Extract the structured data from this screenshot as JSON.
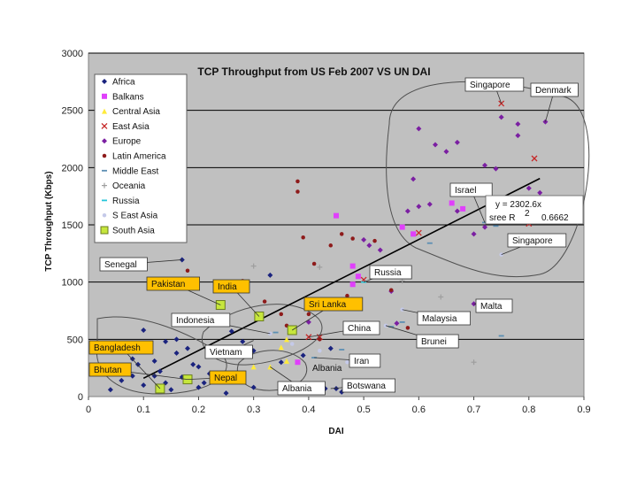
{
  "chart_data": {
    "type": "scatter",
    "title": "TCP Throughput from US Feb 2007 VS UN DAI",
    "xlabel": "DAI",
    "ylabel": "TCP Throughput (Kbps)",
    "xlim": [
      0,
      0.9
    ],
    "ylim": [
      0,
      3000
    ],
    "x_ticks": [
      "0",
      "0.1",
      "0.2",
      "0.3",
      "0.4",
      "0.5",
      "0.6",
      "0.7",
      "0.8",
      "0.9"
    ],
    "y_ticks": [
      "0",
      "500",
      "1000",
      "1500",
      "2000",
      "2500",
      "3000"
    ],
    "grid": "horizontal",
    "legend_position": "top-left",
    "trendline": {
      "x": [
        0.1,
        0.82
      ],
      "y": [
        160,
        1905
      ],
      "equation": "y = 2302.6x",
      "r2_label": "sree R",
      "r2_value": "0.6662"
    },
    "series": [
      {
        "name": "Africa",
        "color": "#1a237e",
        "marker": "diamond",
        "points": [
          [
            0.04,
            60
          ],
          [
            0.06,
            140
          ],
          [
            0.07,
            220
          ],
          [
            0.08,
            330
          ],
          [
            0.09,
            280
          ],
          [
            0.1,
            580
          ],
          [
            0.11,
            400
          ],
          [
            0.12,
            310
          ],
          [
            0.13,
            220
          ],
          [
            0.14,
            120
          ],
          [
            0.15,
            60
          ],
          [
            0.16,
            380
          ],
          [
            0.17,
            170
          ],
          [
            0.18,
            150
          ],
          [
            0.19,
            280
          ],
          [
            0.2,
            260
          ],
          [
            0.21,
            120
          ],
          [
            0.14,
            480
          ],
          [
            0.16,
            500
          ],
          [
            0.12,
            180
          ],
          [
            0.18,
            420
          ],
          [
            0.1,
            100
          ],
          [
            0.08,
            180
          ],
          [
            0.17,
            1195
          ],
          [
            0.33,
            1060
          ],
          [
            0.26,
            570
          ],
          [
            0.28,
            480
          ],
          [
            0.3,
            80
          ],
          [
            0.35,
            300
          ],
          [
            0.39,
            360
          ],
          [
            0.43,
            70
          ],
          [
            0.44,
            420
          ],
          [
            0.45,
            70
          ],
          [
            0.46,
            40
          ],
          [
            0.25,
            30
          ],
          [
            0.22,
            200
          ],
          [
            0.3,
            400
          ],
          [
            0.2,
            80
          ]
        ]
      },
      {
        "name": "Balkans",
        "color": "#e040fb",
        "marker": "square",
        "points": [
          [
            0.38,
            300
          ],
          [
            0.45,
            1580
          ],
          [
            0.48,
            1140
          ],
          [
            0.49,
            1050
          ],
          [
            0.48,
            980
          ],
          [
            0.57,
            1480
          ],
          [
            0.59,
            1420
          ],
          [
            0.66,
            1690
          ],
          [
            0.68,
            1640
          ]
        ]
      },
      {
        "name": "Central Asia",
        "color": "#ffeb3b",
        "marker": "triangle",
        "points": [
          [
            0.3,
            260
          ],
          [
            0.33,
            260
          ],
          [
            0.35,
            430
          ],
          [
            0.36,
            500
          ],
          [
            0.36,
            310
          ]
        ]
      },
      {
        "name": "East Asia",
        "color": "#c62828",
        "marker": "x",
        "points": [
          [
            0.4,
            520
          ],
          [
            0.42,
            520
          ],
          [
            0.5,
            1020
          ],
          [
            0.6,
            1430
          ],
          [
            0.75,
            2560
          ],
          [
            0.81,
            2080
          ],
          [
            0.8,
            1510
          ]
        ]
      },
      {
        "name": "Europe",
        "color": "#7b1fa2",
        "marker": "diamond",
        "points": [
          [
            0.5,
            1370
          ],
          [
            0.51,
            1320
          ],
          [
            0.53,
            1280
          ],
          [
            0.55,
            920
          ],
          [
            0.56,
            640
          ],
          [
            0.58,
            1620
          ],
          [
            0.59,
            1900
          ],
          [
            0.6,
            2340
          ],
          [
            0.6,
            1660
          ],
          [
            0.62,
            1680
          ],
          [
            0.63,
            2200
          ],
          [
            0.65,
            2140
          ],
          [
            0.67,
            2220
          ],
          [
            0.67,
            1620
          ],
          [
            0.7,
            1420
          ],
          [
            0.72,
            2020
          ],
          [
            0.72,
            1480
          ],
          [
            0.74,
            1990
          ],
          [
            0.75,
            2440
          ],
          [
            0.78,
            2380
          ],
          [
            0.78,
            2280
          ],
          [
            0.8,
            1820
          ],
          [
            0.82,
            1780
          ],
          [
            0.83,
            2400
          ],
          [
            0.7,
            810
          ],
          [
            0.4,
            650
          ]
        ]
      },
      {
        "name": "Latin America",
        "color": "#8e1b1b",
        "marker": "dot",
        "points": [
          [
            0.18,
            1100
          ],
          [
            0.28,
            1010
          ],
          [
            0.38,
            1880
          ],
          [
            0.38,
            1790
          ],
          [
            0.39,
            1390
          ],
          [
            0.41,
            1160
          ],
          [
            0.44,
            1320
          ],
          [
            0.46,
            1420
          ],
          [
            0.48,
            1380
          ],
          [
            0.52,
            1360
          ],
          [
            0.55,
            930
          ],
          [
            0.58,
            600
          ],
          [
            0.44,
            820
          ],
          [
            0.4,
            720
          ],
          [
            0.47,
            880
          ],
          [
            0.53,
            1050
          ],
          [
            0.35,
            720
          ],
          [
            0.32,
            830
          ],
          [
            0.42,
            500
          ],
          [
            0.36,
            620
          ]
        ]
      },
      {
        "name": "Middle East",
        "color": "#5c8fb3",
        "marker": "dash",
        "points": [
          [
            0.34,
            560
          ],
          [
            0.41,
            340
          ],
          [
            0.46,
            410
          ],
          [
            0.52,
            610
          ],
          [
            0.55,
            610
          ],
          [
            0.57,
            650
          ],
          [
            0.72,
            1520
          ],
          [
            0.74,
            1490
          ],
          [
            0.75,
            530
          ],
          [
            0.62,
            1340
          ]
        ]
      },
      {
        "name": "Oceania",
        "color": "#9e9e9e",
        "marker": "plus",
        "points": [
          [
            0.3,
            1140
          ],
          [
            0.42,
            1130
          ],
          [
            0.57,
            1010
          ],
          [
            0.64,
            870
          ],
          [
            0.7,
            300
          ]
        ]
      },
      {
        "name": "Russia",
        "color": "#26c6da",
        "marker": "dash",
        "points": [
          [
            0.5,
            1000
          ]
        ]
      },
      {
        "name": "S East Asia",
        "color": "#c5cae9",
        "marker": "dot",
        "points": [
          [
            0.33,
            550
          ],
          [
            0.37,
            460
          ],
          [
            0.42,
            400
          ],
          [
            0.47,
            300
          ],
          [
            0.54,
            620
          ],
          [
            0.57,
            760
          ],
          [
            0.75,
            1240
          ]
        ]
      },
      {
        "name": "South Asia",
        "color": "#c6e63c",
        "marker": "square",
        "points": [
          [
            0.13,
            70
          ],
          [
            0.18,
            150
          ],
          [
            0.24,
            800
          ],
          [
            0.31,
            700
          ],
          [
            0.37,
            580
          ]
        ]
      }
    ],
    "annotations": [
      {
        "text": "Singapore",
        "x": 0.75,
        "y": 2560,
        "style": "white"
      },
      {
        "text": "Denmark",
        "x": 0.83,
        "y": 2400,
        "style": "white"
      },
      {
        "text": "Israel",
        "x": 0.72,
        "y": 1520,
        "style": "white"
      },
      {
        "text": "Singapore",
        "x": 0.75,
        "y": 1240,
        "style": "white"
      },
      {
        "text": "Senegal",
        "x": 0.17,
        "y": 1195,
        "style": "white"
      },
      {
        "text": "Russia",
        "x": 0.5,
        "y": 1000,
        "style": "white"
      },
      {
        "text": "Pakistan",
        "x": 0.24,
        "y": 800,
        "style": "yellow"
      },
      {
        "text": "India",
        "x": 0.31,
        "y": 700,
        "style": "yellow"
      },
      {
        "text": "Sri Lanka",
        "x": 0.37,
        "y": 580,
        "style": "yellow"
      },
      {
        "text": "Malta",
        "x": 0.7,
        "y": 810,
        "style": "white"
      },
      {
        "text": "Indonesia",
        "x": 0.33,
        "y": 550,
        "style": "white"
      },
      {
        "text": "Malaysia",
        "x": 0.57,
        "y": 760,
        "style": "white"
      },
      {
        "text": "China",
        "x": 0.4,
        "y": 520,
        "style": "white"
      },
      {
        "text": "Brunei",
        "x": 0.54,
        "y": 620,
        "style": "white"
      },
      {
        "text": "Bangladesh",
        "x": 0.13,
        "y": 70,
        "style": "yellow"
      },
      {
        "text": "Vietnam",
        "x": 0.3,
        "y": 490,
        "style": "white"
      },
      {
        "text": "Iran",
        "x": 0.41,
        "y": 340,
        "style": "white"
      },
      {
        "text": "Albania",
        "x": 0.38,
        "y": 300,
        "style": "none"
      },
      {
        "text": "Bhutan",
        "x": 0.18,
        "y": 150,
        "style": "yellow"
      },
      {
        "text": "Nepal",
        "x": 0.18,
        "y": 150,
        "style": "yellow"
      },
      {
        "text": "Albania",
        "x": 0.33,
        "y": 260,
        "style": "white"
      },
      {
        "text": "Botswana",
        "x": 0.44,
        "y": 70,
        "style": "white"
      }
    ]
  }
}
